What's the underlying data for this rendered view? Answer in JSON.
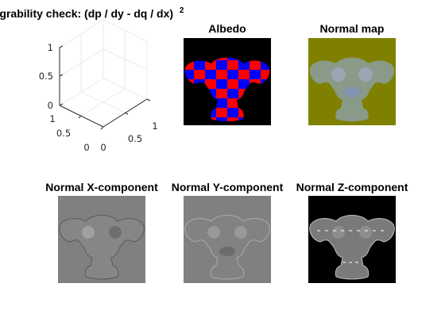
{
  "chart_data": [
    {
      "type": "surface",
      "title": "Integrability check: (dp / dy - dq / dx)",
      "title_superscript": "2",
      "x_ticks": [
        "0",
        "0.5",
        "1"
      ],
      "y_ticks": [
        "0",
        "0.5",
        "1"
      ],
      "z_ticks": [
        "0",
        "0.5",
        "1"
      ],
      "xlim": [
        0,
        1
      ],
      "ylim": [
        0,
        1
      ],
      "zlim": [
        0,
        1
      ],
      "grid": true
    },
    {
      "type": "image",
      "title": "Albedo",
      "colors": [
        "#ff0000",
        "#0000ff"
      ],
      "background": "#000000"
    },
    {
      "type": "image",
      "title": "Normal map",
      "background": "#808000"
    },
    {
      "type": "image",
      "title": "Normal X-component",
      "colormap": "gray"
    },
    {
      "type": "image",
      "title": "Normal Y-component",
      "colormap": "gray"
    },
    {
      "type": "image",
      "title": "Normal Z-component",
      "colormap": "gray",
      "background": "#000000"
    }
  ]
}
